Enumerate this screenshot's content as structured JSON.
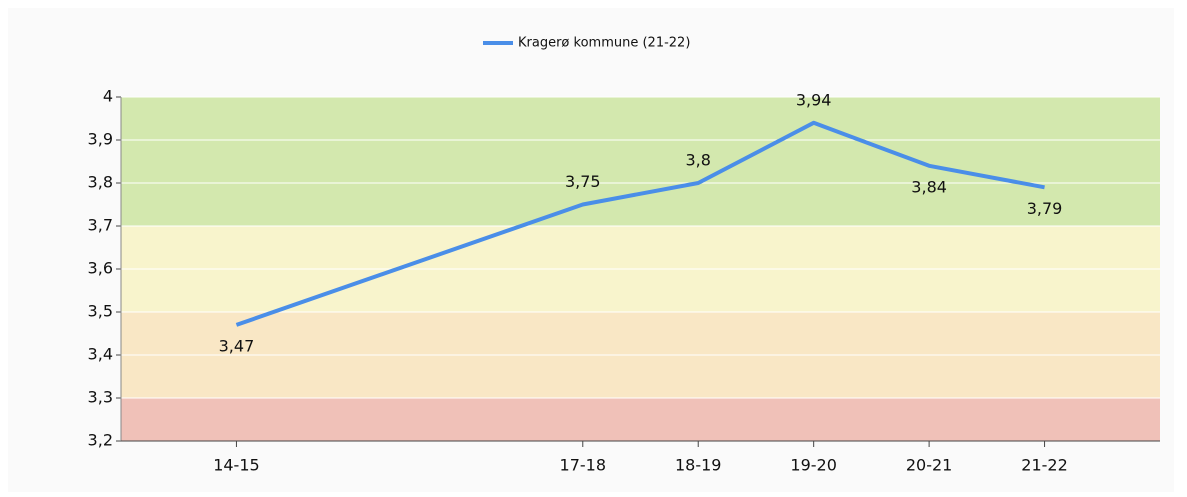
{
  "chart_data": {
    "type": "line",
    "series": [
      {
        "name": "Kragerø kommune (21-22)",
        "color": "#4a8ee8",
        "x": [
          1,
          4,
          5,
          6,
          7,
          8
        ],
        "values": [
          3.47,
          3.75,
          3.8,
          3.94,
          3.84,
          3.79
        ],
        "value_labels": [
          "3,47",
          "3,75",
          "3,8",
          "3,94",
          "3,84",
          "3,79"
        ]
      }
    ],
    "xlim": [
      0,
      9
    ],
    "xticks": [
      {
        "value": 1,
        "label": "14-15"
      },
      {
        "value": 4,
        "label": "17-18"
      },
      {
        "value": 5,
        "label": "18-19"
      },
      {
        "value": 6,
        "label": "19-20"
      },
      {
        "value": 7,
        "label": "20-21"
      },
      {
        "value": 8,
        "label": "21-22"
      }
    ],
    "ylim": [
      3.2,
      4
    ],
    "yticks": [
      {
        "value": 3.2,
        "label": "3,2"
      },
      {
        "value": 3.3,
        "label": "3,3"
      },
      {
        "value": 3.4,
        "label": "3,4"
      },
      {
        "value": 3.5,
        "label": "3,5"
      },
      {
        "value": 3.6,
        "label": "3,6"
      },
      {
        "value": 3.7,
        "label": "3,7"
      },
      {
        "value": 3.8,
        "label": "3,8"
      },
      {
        "value": 3.9,
        "label": "3,9"
      },
      {
        "value": 4,
        "label": "4"
      }
    ],
    "bands": [
      {
        "from": 3.7,
        "to": 4,
        "color": "#d3e8ae"
      },
      {
        "from": 3.5,
        "to": 3.7,
        "color": "#f8f4cc"
      },
      {
        "from": 3.3,
        "to": 3.5,
        "color": "#f9e7c5"
      },
      {
        "from": 3.2,
        "to": 3.3,
        "color": "#f0c1b8"
      }
    ],
    "grid": true,
    "legend": "top"
  }
}
